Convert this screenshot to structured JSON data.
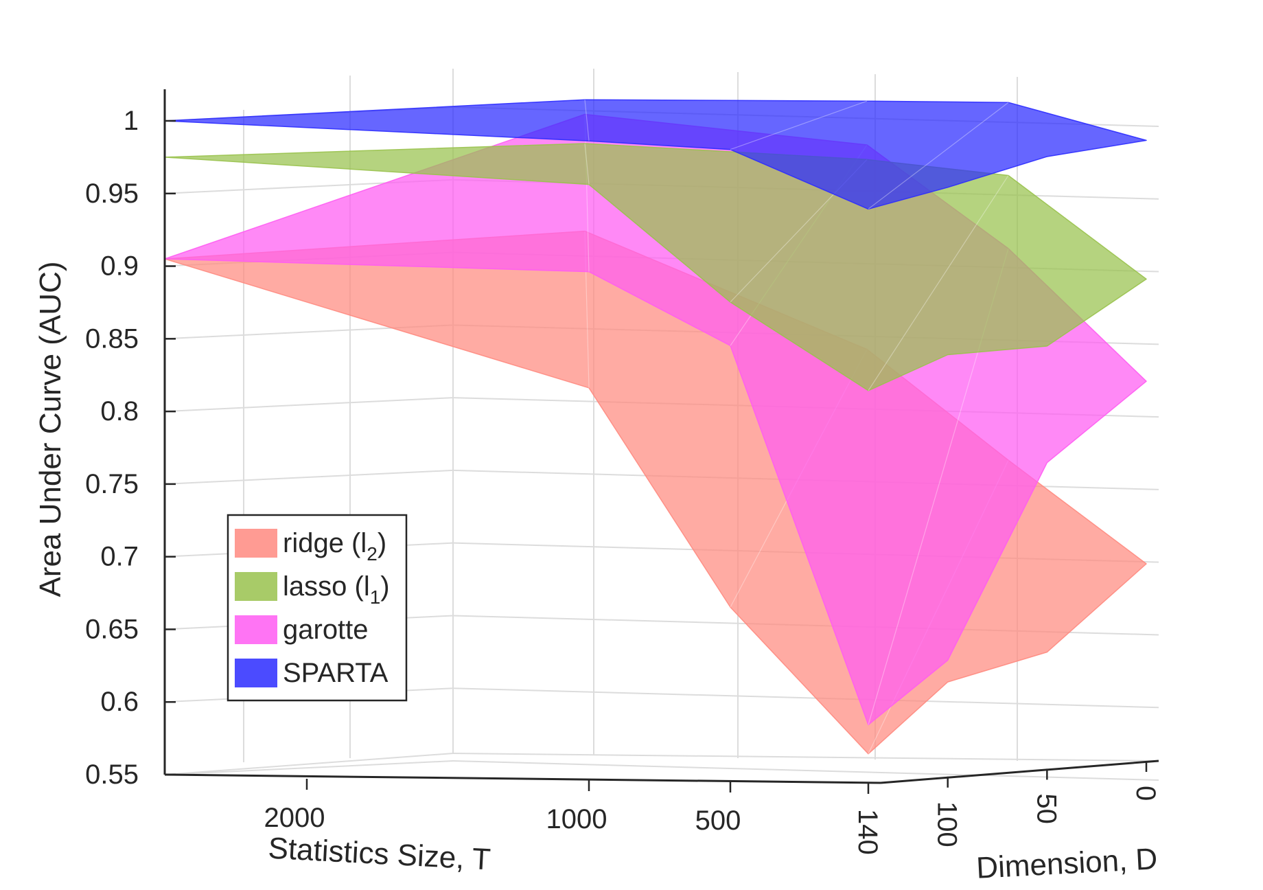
{
  "chart_data": {
    "type": "3d-surface",
    "zlabel": "Area Under Curve (AUC)",
    "xlabel": "Statistics Size, T",
    "ylabel": "Dimension, D",
    "zlim": [
      0.55,
      1.0
    ],
    "z_ticks": [
      "0.55",
      "0.6",
      "0.65",
      "0.7",
      "0.75",
      "0.8",
      "0.85",
      "0.9",
      "0.95",
      "1"
    ],
    "T_ticks": [
      "2000",
      "1000",
      "500",
      "140"
    ],
    "D_ticks": [
      "100",
      "50",
      "0"
    ],
    "grid": true,
    "legend_position": "bottom-left",
    "series": [
      {
        "name": "ridge (l2)",
        "label_main": "ridge (l",
        "label_sub": "2",
        "label_end": ")",
        "color": "#ff8a80",
        "points": [
          {
            "T": 2300,
            "D": 140,
            "auc": 0.905
          },
          {
            "T": 1000,
            "D": 140,
            "auc": 0.82
          },
          {
            "T": 500,
            "D": 140,
            "auc": 0.67
          },
          {
            "T": 140,
            "D": 140,
            "auc": 0.57
          },
          {
            "T": 140,
            "D": 100,
            "auc": 0.615
          },
          {
            "T": 140,
            "D": 50,
            "auc": 0.63
          },
          {
            "T": 140,
            "D": 0,
            "auc": 0.685
          },
          {
            "T": 500,
            "D": 0,
            "auc": 0.755
          },
          {
            "T": 1000,
            "D": 0,
            "auc": 0.83
          },
          {
            "T": 2000,
            "D": 0,
            "auc": 0.91
          }
        ]
      },
      {
        "name": "lasso (l1)",
        "label_main": "lasso (l",
        "label_sub": "1",
        "label_end": ")",
        "color": "#99c24d",
        "points": [
          {
            "T": 2300,
            "D": 140,
            "auc": 0.975
          },
          {
            "T": 1000,
            "D": 140,
            "auc": 0.96
          },
          {
            "T": 500,
            "D": 140,
            "auc": 0.88
          },
          {
            "T": 140,
            "D": 140,
            "auc": 0.82
          },
          {
            "T": 140,
            "D": 100,
            "auc": 0.84
          },
          {
            "T": 140,
            "D": 50,
            "auc": 0.84
          },
          {
            "T": 140,
            "D": 0,
            "auc": 0.88
          },
          {
            "T": 500,
            "D": 0,
            "auc": 0.95
          },
          {
            "T": 1000,
            "D": 0,
            "auc": 0.96
          },
          {
            "T": 2000,
            "D": 0,
            "auc": 0.97
          }
        ]
      },
      {
        "name": "garotte",
        "label_main": "garotte",
        "label_sub": "",
        "label_end": "",
        "color": "#ff5cf2",
        "points": [
          {
            "T": 2300,
            "D": 140,
            "auc": 0.905
          },
          {
            "T": 1000,
            "D": 140,
            "auc": 0.9
          },
          {
            "T": 500,
            "D": 140,
            "auc": 0.85
          },
          {
            "T": 140,
            "D": 140,
            "auc": 0.59
          },
          {
            "T": 140,
            "D": 100,
            "auc": 0.63
          },
          {
            "T": 140,
            "D": 50,
            "auc": 0.76
          },
          {
            "T": 140,
            "D": 0,
            "auc": 0.81
          },
          {
            "T": 500,
            "D": 0,
            "auc": 0.9
          },
          {
            "T": 1000,
            "D": 0,
            "auc": 0.97
          },
          {
            "T": 2000,
            "D": 0,
            "auc": 0.99
          }
        ]
      },
      {
        "name": "SPARTA",
        "label_main": "SPARTA",
        "label_sub": "",
        "label_end": "",
        "color": "#2b2bff",
        "points": [
          {
            "T": 2300,
            "D": 140,
            "auc": 1.0
          },
          {
            "T": 1000,
            "D": 140,
            "auc": 0.99
          },
          {
            "T": 500,
            "D": 140,
            "auc": 0.985
          },
          {
            "T": 140,
            "D": 140,
            "auc": 0.945
          },
          {
            "T": 140,
            "D": 100,
            "auc": 0.955
          },
          {
            "T": 140,
            "D": 50,
            "auc": 0.97
          },
          {
            "T": 140,
            "D": 0,
            "auc": 0.975
          },
          {
            "T": 500,
            "D": 0,
            "auc": 1.0
          },
          {
            "T": 1000,
            "D": 0,
            "auc": 1.0
          },
          {
            "T": 2000,
            "D": 0,
            "auc": 1.0
          }
        ]
      }
    ]
  }
}
